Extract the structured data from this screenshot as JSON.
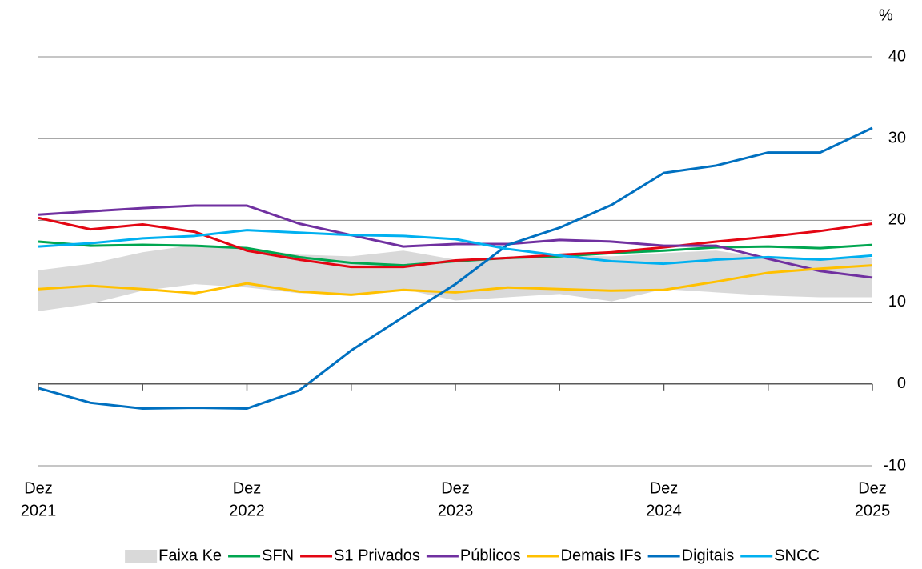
{
  "chart_data": {
    "type": "line",
    "unit_label": "%",
    "categories": [
      [
        "Dez",
        "2021"
      ],
      null,
      null,
      null,
      [
        "Dez",
        "2022"
      ],
      null,
      null,
      null,
      [
        "Dez",
        "2023"
      ],
      null,
      null,
      null,
      [
        "Dez",
        "2024"
      ],
      null,
      null,
      null,
      [
        "Dez",
        "2025"
      ]
    ],
    "ylim": [
      -10,
      40
    ],
    "yticks": [
      -10,
      0,
      10,
      20,
      30,
      40
    ],
    "grid": true,
    "legend": "bottom",
    "series": [
      {
        "name": "Faixa Ke",
        "type": "band",
        "color": "#d9d9d9",
        "low": [
          8.9,
          9.8,
          11.4,
          12.2,
          11.8,
          11.1,
          11.0,
          11.6,
          10.2,
          10.6,
          11.0,
          10.1,
          11.6,
          11.2,
          10.8,
          10.6,
          10.6
        ],
        "high": [
          13.9,
          14.7,
          16.1,
          17.0,
          16.6,
          15.8,
          15.6,
          16.3,
          15.2,
          15.4,
          15.7,
          15.6,
          16.0,
          16.3,
          15.4,
          15.4,
          15.4
        ]
      },
      {
        "name": "SFN",
        "color": "#00a650",
        "values": [
          17.4,
          16.9,
          17.0,
          16.9,
          16.6,
          15.5,
          14.8,
          14.5,
          15.0,
          15.4,
          15.6,
          16.0,
          16.3,
          16.7,
          16.8,
          16.6,
          17.0
        ]
      },
      {
        "name": "S1 Privados",
        "color": "#e30613",
        "values": [
          20.3,
          18.9,
          19.5,
          18.6,
          16.3,
          15.2,
          14.3,
          14.3,
          15.1,
          15.4,
          15.8,
          16.1,
          16.7,
          17.4,
          18.0,
          18.7,
          19.6
        ]
      },
      {
        "name": "Públicos",
        "color": "#7030a0",
        "values": [
          20.7,
          21.1,
          21.5,
          21.8,
          21.8,
          19.6,
          18.2,
          16.8,
          17.1,
          17.1,
          17.6,
          17.4,
          16.9,
          16.9,
          15.3,
          13.8,
          13.0
        ]
      },
      {
        "name": "Demais IFs",
        "color": "#ffc000",
        "values": [
          11.6,
          12.0,
          11.6,
          11.1,
          12.3,
          11.3,
          10.9,
          11.5,
          11.2,
          11.8,
          11.6,
          11.4,
          11.5,
          12.5,
          13.6,
          14.1,
          14.5
        ]
      },
      {
        "name": "Digitais",
        "color": "#0070c0",
        "values": [
          -0.5,
          -2.3,
          -3.0,
          -2.9,
          -3.0,
          -0.8,
          4.1,
          8.2,
          12.2,
          17.0,
          19.1,
          21.9,
          25.8,
          26.7,
          28.3,
          28.3,
          31.3
        ]
      },
      {
        "name": "SNCC",
        "color": "#00b0f0",
        "values": [
          16.8,
          17.2,
          17.8,
          18.1,
          18.8,
          18.5,
          18.2,
          18.1,
          17.7,
          16.5,
          15.7,
          15.0,
          14.7,
          15.2,
          15.5,
          15.2,
          15.7
        ]
      }
    ]
  }
}
